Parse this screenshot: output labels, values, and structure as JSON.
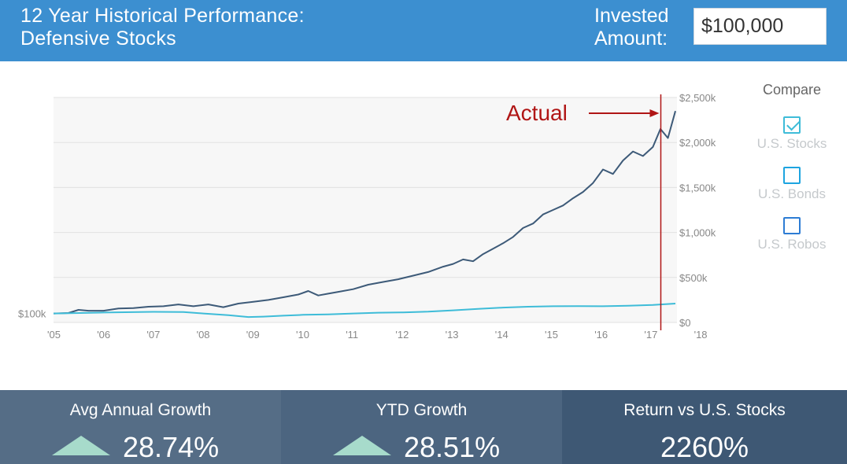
{
  "header": {
    "title_line1": "12 Year Historical Performance:",
    "title_line2": "Defensive Stocks",
    "invested_line1": "Invested",
    "invested_line2": "Amount:",
    "amount_value": "$100,000"
  },
  "compare": {
    "title": "Compare",
    "items": [
      {
        "label": "U.S. Stocks",
        "checked": true,
        "color": "#3ebcd8"
      },
      {
        "label": "U.S. Bonds",
        "checked": false,
        "color": "#1da4e0"
      },
      {
        "label": "U.S. Robos",
        "checked": false,
        "color": "#2d7cd4"
      }
    ]
  },
  "stats": [
    {
      "label": "Avg Annual Growth",
      "value": "28.74%",
      "arrow": "up",
      "bg": "#556d86"
    },
    {
      "label": "YTD Growth",
      "value": "28.51%",
      "arrow": "up",
      "bg": "#4c6580"
    },
    {
      "label": "Return vs U.S. Stocks",
      "value": "2260%",
      "arrow": "none",
      "bg": "#3e5874"
    }
  ],
  "colors": {
    "header_bg": "#3c8fd0",
    "portfolio_line": "#3d5a78",
    "stocks_line": "#3ebcd8",
    "actual_marker": "#b01515",
    "arrow_up": "#a7dbcb"
  },
  "chart_data": {
    "type": "line",
    "x_tick_labels": [
      "'05",
      "'06",
      "'07",
      "'08",
      "'09",
      "'10",
      "'11",
      "'12",
      "'13",
      "'14",
      "'15",
      "'16",
      "'17",
      "'18"
    ],
    "xlim": [
      2005,
      2018
    ],
    "y_tick_labels": [
      "$0",
      "$500k",
      "$1,000k",
      "$1,500k",
      "$2,000k",
      "$2,500k"
    ],
    "y_ticks": [
      0,
      500,
      1000,
      1500,
      2000,
      2500
    ],
    "y_unit": "thousands USD",
    "ylim": [
      0,
      2500
    ],
    "start_label": "$100k",
    "start_value": 100,
    "grid": true,
    "annotation": {
      "text": "Actual",
      "x": 2017.3
    },
    "series": [
      {
        "key": "portfolio",
        "x": [
          2005.0,
          2005.3,
          2005.5,
          2005.7,
          2006.0,
          2006.3,
          2006.6,
          2006.9,
          2007.2,
          2007.5,
          2007.8,
          2008.1,
          2008.4,
          2008.7,
          2009.0,
          2009.3,
          2009.6,
          2009.9,
          2010.1,
          2010.3,
          2010.5,
          2010.7,
          2011.0,
          2011.3,
          2011.6,
          2011.9,
          2012.2,
          2012.5,
          2012.8,
          2013.0,
          2013.2,
          2013.4,
          2013.6,
          2013.8,
          2014.0,
          2014.2,
          2014.4,
          2014.6,
          2014.8,
          2015.0,
          2015.2,
          2015.4,
          2015.6,
          2015.8,
          2016.0,
          2016.2,
          2016.4,
          2016.6,
          2016.8,
          2017.0,
          2017.15,
          2017.3,
          2017.45
        ],
        "y": [
          100,
          105,
          140,
          130,
          130,
          155,
          160,
          175,
          180,
          200,
          180,
          200,
          170,
          210,
          230,
          250,
          280,
          310,
          350,
          300,
          320,
          340,
          370,
          420,
          450,
          480,
          520,
          560,
          620,
          650,
          700,
          680,
          760,
          820,
          880,
          950,
          1050,
          1100,
          1200,
          1250,
          1300,
          1380,
          1450,
          1550,
          1700,
          1650,
          1800,
          1900,
          1850,
          1950,
          2150,
          2050,
          2350
        ]
      },
      {
        "key": "us_stocks",
        "x": [
          2005.0,
          2006.0,
          2007.0,
          2007.6,
          2008.0,
          2008.5,
          2008.9,
          2009.2,
          2009.6,
          2010.0,
          2010.5,
          2011.0,
          2011.5,
          2012.0,
          2012.5,
          2013.0,
          2013.5,
          2014.0,
          2014.5,
          2015.0,
          2015.5,
          2016.0,
          2016.5,
          2017.0,
          2017.45
        ],
        "y": [
          100,
          110,
          118,
          115,
          100,
          80,
          60,
          65,
          75,
          85,
          90,
          100,
          108,
          112,
          120,
          135,
          150,
          165,
          175,
          180,
          182,
          180,
          185,
          195,
          210
        ]
      }
    ]
  }
}
